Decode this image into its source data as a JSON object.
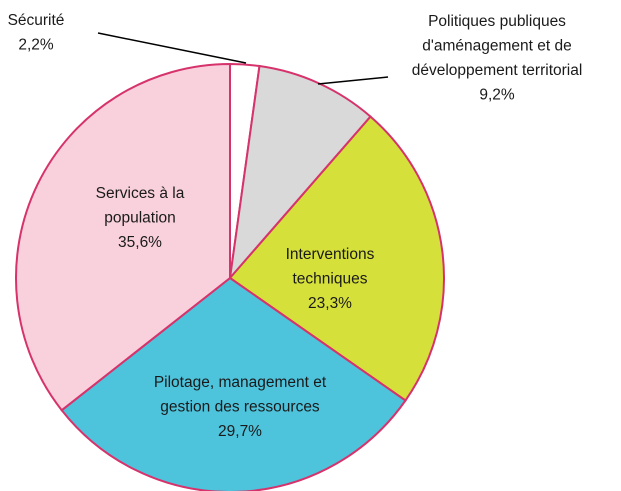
{
  "chart_data": {
    "type": "pie",
    "categories": [
      [
        "Sécurité"
      ],
      [
        "Politiques publiques",
        "d'aménagement et de",
        "développement territorial"
      ],
      [
        "Interventions",
        "techniques"
      ],
      [
        "Pilotage, management et",
        "gestion des ressources"
      ],
      [
        "Services à la",
        "population"
      ]
    ],
    "values": [
      2.2,
      9.2,
      23.3,
      29.7,
      35.6
    ],
    "value_labels": [
      "2,2%",
      "9,2%",
      "23,3%",
      "29,7%",
      "35,6%"
    ],
    "colors": [
      "#ffffff",
      "#d9d9d9",
      "#d6e03a",
      "#4dc3dc",
      "#f8d1dc"
    ],
    "edge_color": "#d6336c"
  }
}
